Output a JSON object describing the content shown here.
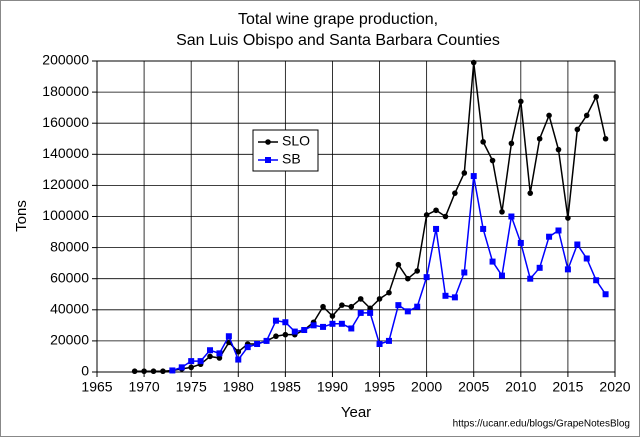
{
  "chart_data": {
    "type": "line",
    "title": [
      "Total wine grape production,",
      "San Luis Obispo and Santa Barbara Counties"
    ],
    "x_label": "Year",
    "y_label": "Tons",
    "source": "https://ucanr.edu/blogs/GrapeNotesBlog",
    "x": [
      1969,
      1970,
      1971,
      1972,
      1973,
      1974,
      1975,
      1976,
      1977,
      1978,
      1979,
      1980,
      1981,
      1982,
      1983,
      1984,
      1985,
      1986,
      1987,
      1988,
      1989,
      1990,
      1991,
      1992,
      1993,
      1994,
      1995,
      1996,
      1997,
      1998,
      1999,
      2000,
      2001,
      2002,
      2003,
      2004,
      2005,
      2006,
      2007,
      2008,
      2009,
      2010,
      2011,
      2012,
      2013,
      2014,
      2015,
      2016,
      2017,
      2018,
      2019
    ],
    "series": [
      {
        "name": "SLO",
        "color": "#000000",
        "marker": "circle",
        "values": [
          500,
          500,
          500,
          500,
          1000,
          2000,
          3000,
          5000,
          10000,
          9000,
          19000,
          13000,
          18000,
          18000,
          20000,
          23000,
          24000,
          24000,
          27000,
          32000,
          42000,
          36000,
          43000,
          42000,
          47000,
          41000,
          47000,
          51000,
          69000,
          60000,
          65000,
          101000,
          104000,
          100000,
          115000,
          128000,
          199000,
          148000,
          136000,
          103000,
          147000,
          174000,
          115000,
          150000,
          165000,
          143000,
          99000,
          156000,
          165000,
          177000,
          150000
        ]
      },
      {
        "name": "SB",
        "color": "#0000ff",
        "marker": "square",
        "values": [
          null,
          null,
          null,
          null,
          1000,
          3000,
          7000,
          7000,
          14000,
          12000,
          23000,
          8000,
          16000,
          18000,
          20000,
          33000,
          32000,
          26000,
          27000,
          30000,
          29000,
          31000,
          31000,
          28000,
          38000,
          38000,
          18000,
          20000,
          43000,
          39000,
          42000,
          61000,
          92000,
          49000,
          48000,
          64000,
          126000,
          92000,
          71000,
          62000,
          100000,
          83000,
          60000,
          67000,
          87000,
          91000,
          66000,
          82000,
          73000,
          59000,
          50000
        ]
      }
    ],
    "xlim": [
      1965,
      2020
    ],
    "xticks": [
      1965,
      1970,
      1975,
      1980,
      1985,
      1990,
      1995,
      2000,
      2005,
      2010,
      2015,
      2020
    ],
    "ylim": [
      0,
      200000
    ],
    "yticks": [
      0,
      20000,
      40000,
      60000,
      80000,
      100000,
      120000,
      140000,
      160000,
      180000,
      200000
    ],
    "grid": true
  }
}
